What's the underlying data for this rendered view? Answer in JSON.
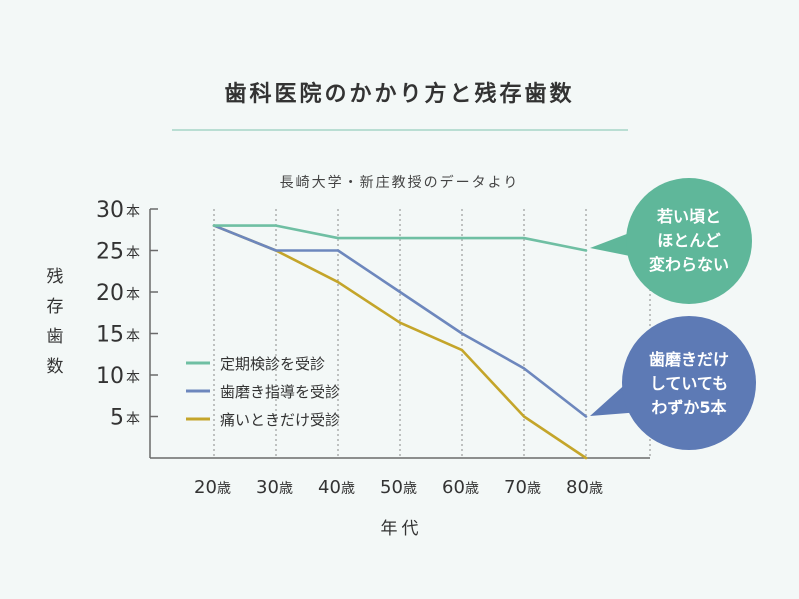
{
  "title": "歯科医院のかかり方と残存歯数",
  "subtitle": "長崎大学・新庄教授のデータより",
  "colors": {
    "teal": "#6fbfa3",
    "blue": "#6d87bd",
    "gold": "#c4a52a",
    "bubble_teal": "#5fb79a",
    "bubble_blue": "#5d7ab5",
    "axis": "#6a6a6a",
    "grid": "#8a8a8a"
  },
  "chart_data": {
    "type": "line",
    "title": "歯科医院のかかり方と残存歯数",
    "xlabel": "年代",
    "ylabel": "残存歯数",
    "ylabel_chars": [
      "残",
      "存",
      "歯",
      "数"
    ],
    "categories": [
      "20",
      "30",
      "40",
      "50",
      "60",
      "70",
      "80"
    ],
    "x_unit": "歳",
    "y_unit": "本",
    "y_ticks": [
      5,
      10,
      15,
      20,
      25,
      30
    ],
    "ylim": [
      0,
      30
    ],
    "grid": "vertical-dashed",
    "legend": "bottom-left",
    "series": [
      {
        "name": "定期検診を受診",
        "color": "#6fbfa3",
        "values": [
          28,
          28,
          26.5,
          26.5,
          26.5,
          26.5,
          25
        ]
      },
      {
        "name": "歯磨き指導を受診",
        "color": "#6d87bd",
        "values": [
          28,
          25,
          25,
          20,
          15,
          10.8,
          5
        ]
      },
      {
        "name": "痛いときだけ受診",
        "color": "#c4a52a",
        "values": [
          28,
          25,
          21.2,
          16.3,
          13,
          5,
          0
        ]
      }
    ],
    "annotations": [
      {
        "series": 0,
        "text": "若い頃と\nほとんど\n変わらない",
        "color": "#5fb79a"
      },
      {
        "series": 1,
        "text": "歯磨きだけ\nしていても\nわずか5本",
        "color": "#5d7ab5"
      }
    ]
  }
}
